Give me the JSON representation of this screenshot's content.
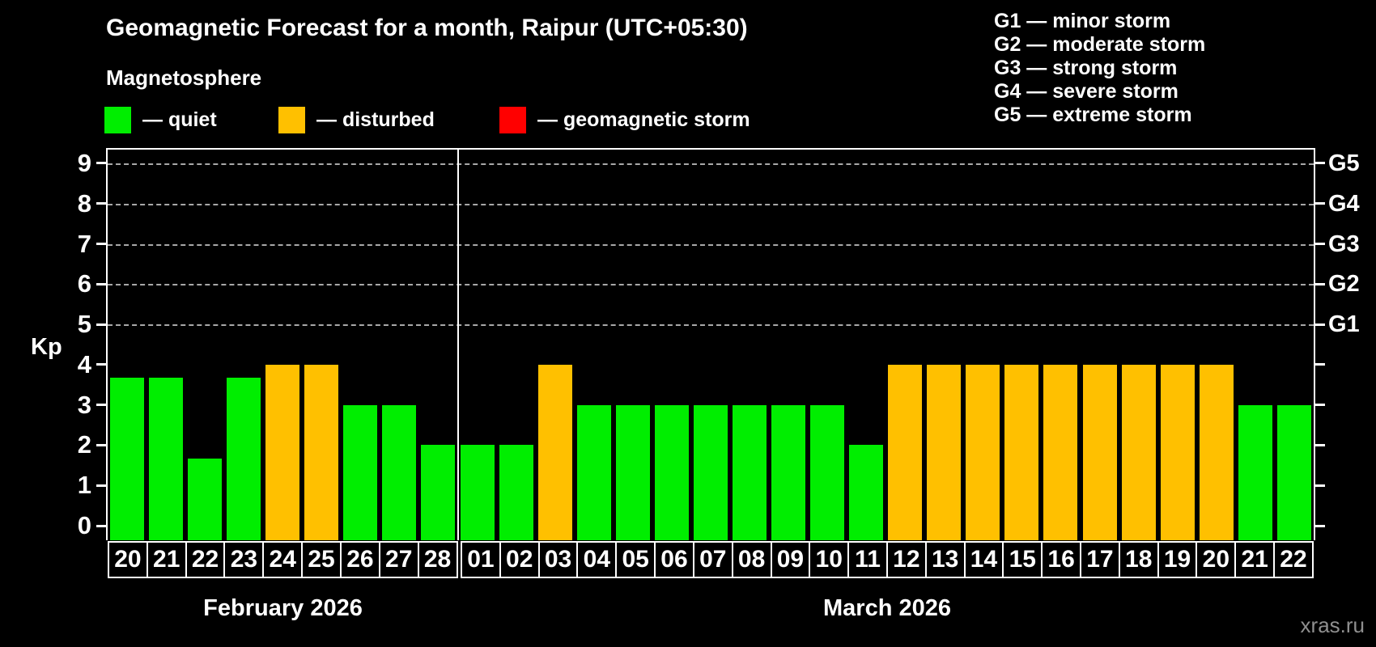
{
  "title": "Geomagnetic Forecast for a month, Raipur (UTC+05:30)",
  "subtitle": "Magnetosphere",
  "legend": {
    "items": [
      {
        "key": "quiet",
        "label": "— quiet",
        "color": "#00ee00"
      },
      {
        "key": "disturbed",
        "label": "— disturbed",
        "color": "#ffc000"
      },
      {
        "key": "storm",
        "label": "— geomagnetic storm",
        "color": "#ff0000"
      }
    ]
  },
  "g_scale_legend": [
    "G1 — minor storm",
    "G2 — moderate storm",
    "G3 — strong storm",
    "G4 — severe storm",
    "G5 — extreme storm"
  ],
  "watermark": "xras.ru",
  "chart_data": {
    "type": "bar",
    "title": "Geomagnetic Forecast for a month, Raipur (UTC+05:30)",
    "ylabel": "Kp",
    "ylim": [
      0,
      9
    ],
    "yticks": [
      0,
      1,
      2,
      3,
      4,
      5,
      6,
      7,
      8,
      9
    ],
    "gridlines_at": [
      5,
      6,
      7,
      8,
      9
    ],
    "grid": "dashed horizontal at Kp 5-9 only",
    "right_axis_labels": [
      {
        "kp": 5,
        "label": "G1"
      },
      {
        "kp": 6,
        "label": "G2"
      },
      {
        "kp": 7,
        "label": "G3"
      },
      {
        "kp": 8,
        "label": "G4"
      },
      {
        "kp": 9,
        "label": "G5"
      }
    ],
    "colors": {
      "quiet": "#00ee00",
      "disturbed": "#ffc000",
      "storm": "#ff0000"
    },
    "months": [
      {
        "label": "February 2026",
        "days": [
          {
            "day": "20",
            "kp": 3.67,
            "status": "quiet"
          },
          {
            "day": "21",
            "kp": 3.67,
            "status": "quiet"
          },
          {
            "day": "22",
            "kp": 1.67,
            "status": "quiet"
          },
          {
            "day": "23",
            "kp": 3.67,
            "status": "quiet"
          },
          {
            "day": "24",
            "kp": 4,
            "status": "disturbed"
          },
          {
            "day": "25",
            "kp": 4,
            "status": "disturbed"
          },
          {
            "day": "26",
            "kp": 3,
            "status": "quiet"
          },
          {
            "day": "27",
            "kp": 3,
            "status": "quiet"
          },
          {
            "day": "28",
            "kp": 2,
            "status": "quiet"
          }
        ]
      },
      {
        "label": "March 2026",
        "days": [
          {
            "day": "01",
            "kp": 2,
            "status": "quiet"
          },
          {
            "day": "02",
            "kp": 2,
            "status": "quiet"
          },
          {
            "day": "03",
            "kp": 4,
            "status": "disturbed"
          },
          {
            "day": "04",
            "kp": 3,
            "status": "quiet"
          },
          {
            "day": "05",
            "kp": 3,
            "status": "quiet"
          },
          {
            "day": "06",
            "kp": 3,
            "status": "quiet"
          },
          {
            "day": "07",
            "kp": 3,
            "status": "quiet"
          },
          {
            "day": "08",
            "kp": 3,
            "status": "quiet"
          },
          {
            "day": "09",
            "kp": 3,
            "status": "quiet"
          },
          {
            "day": "10",
            "kp": 3,
            "status": "quiet"
          },
          {
            "day": "11",
            "kp": 2,
            "status": "quiet"
          },
          {
            "day": "12",
            "kp": 4,
            "status": "disturbed"
          },
          {
            "day": "13",
            "kp": 4,
            "status": "disturbed"
          },
          {
            "day": "14",
            "kp": 4,
            "status": "disturbed"
          },
          {
            "day": "15",
            "kp": 4,
            "status": "disturbed"
          },
          {
            "day": "16",
            "kp": 4,
            "status": "disturbed"
          },
          {
            "day": "17",
            "kp": 4,
            "status": "disturbed"
          },
          {
            "day": "18",
            "kp": 4,
            "status": "disturbed"
          },
          {
            "day": "19",
            "kp": 4,
            "status": "disturbed"
          },
          {
            "day": "20",
            "kp": 4,
            "status": "disturbed"
          },
          {
            "day": "21",
            "kp": 3,
            "status": "quiet"
          },
          {
            "day": "22",
            "kp": 3,
            "status": "quiet"
          }
        ]
      }
    ]
  }
}
